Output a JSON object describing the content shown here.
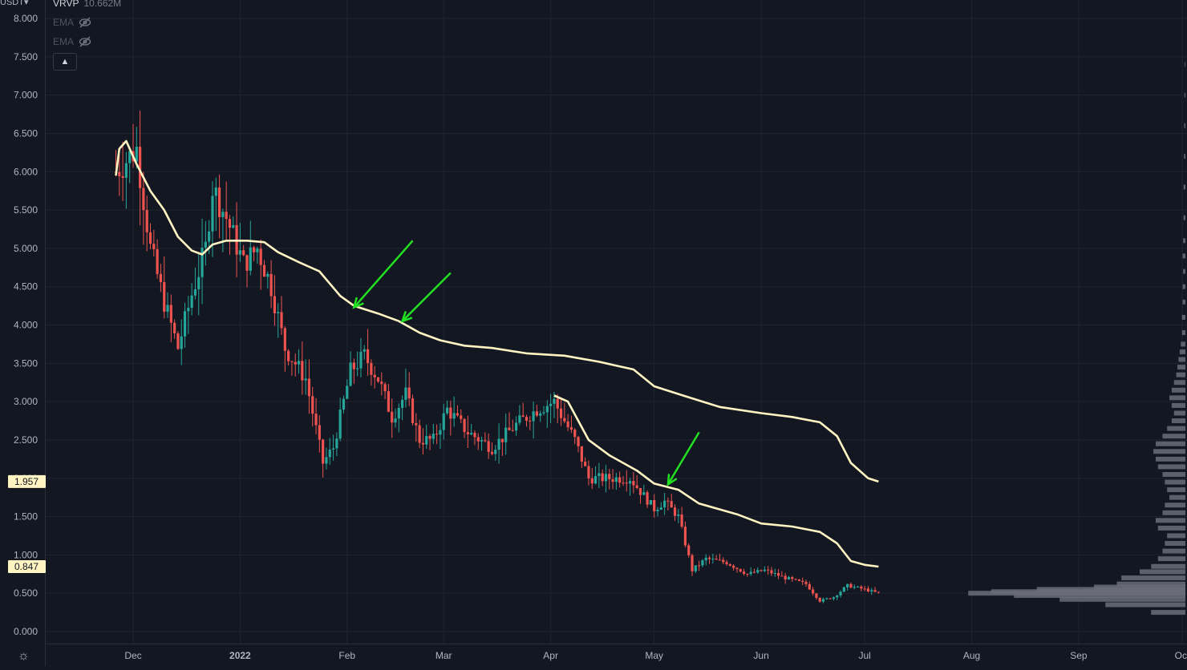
{
  "currency_label": "USDT",
  "legend": {
    "vrvp_label": "VRVP",
    "vrvp_value": "10.662M",
    "ema_1": "EMA",
    "ema_2": "EMA",
    "ema_hidden_icon": "eye-slash-icon"
  },
  "collapse_icon": "chevron-up-icon",
  "settings_icon": "gear-icon",
  "colors": {
    "background": "#131722",
    "grid": "#1f2430",
    "up": "#26a69a",
    "down": "#ef5350",
    "ema": "#fff4c2",
    "arrow": "#22e022",
    "axis_text": "#b2b5be",
    "profile": "#6a6d78"
  },
  "chart_data": {
    "type": "candlestick",
    "ylim": [
      0,
      8
    ],
    "y_ticks": [
      "0.000",
      "0.500",
      "1.000",
      "1.500",
      "2.000",
      "2.500",
      "3.000",
      "3.500",
      "4.000",
      "4.500",
      "5.000",
      "5.500",
      "6.000",
      "6.500",
      "7.000",
      "7.500",
      "8.000"
    ],
    "x_ticks": [
      {
        "label": "Dec",
        "date": "2021-12-01"
      },
      {
        "label": "2022",
        "date": "2022-01-01"
      },
      {
        "label": "Feb",
        "date": "2022-02-01"
      },
      {
        "label": "Mar",
        "date": "2022-03-01"
      },
      {
        "label": "Apr",
        "date": "2022-04-01"
      },
      {
        "label": "May",
        "date": "2022-05-01"
      },
      {
        "label": "Jun",
        "date": "2022-06-01"
      },
      {
        "label": "Jul",
        "date": "2022-07-01"
      },
      {
        "label": "Aug",
        "date": "2022-08-01"
      },
      {
        "label": "Sep",
        "date": "2022-09-01"
      },
      {
        "label": "Oct",
        "date": "2022-10-01"
      }
    ],
    "price_labels": [
      {
        "text": "1.957",
        "value": 1.957
      },
      {
        "text": "0.847",
        "value": 0.847
      }
    ],
    "ema_long": [
      [
        "2021-11-26",
        5.95
      ],
      [
        "2021-11-27",
        6.3
      ],
      [
        "2021-11-29",
        6.4
      ],
      [
        "2021-12-02",
        6.1
      ],
      [
        "2021-12-06",
        5.75
      ],
      [
        "2021-12-10",
        5.5
      ],
      [
        "2021-12-14",
        5.15
      ],
      [
        "2021-12-18",
        4.97
      ],
      [
        "2021-12-21",
        4.92
      ],
      [
        "2021-12-24",
        5.05
      ],
      [
        "2021-12-28",
        5.1
      ],
      [
        "2022-01-03",
        5.1
      ],
      [
        "2022-01-08",
        5.08
      ],
      [
        "2022-01-12",
        4.95
      ],
      [
        "2022-01-18",
        4.82
      ],
      [
        "2022-01-24",
        4.7
      ],
      [
        "2022-01-30",
        4.38
      ],
      [
        "2022-02-03",
        4.25
      ],
      [
        "2022-02-10",
        4.15
      ],
      [
        "2022-02-16",
        4.05
      ],
      [
        "2022-02-22",
        3.9
      ],
      [
        "2022-02-28",
        3.8
      ],
      [
        "2022-03-07",
        3.73
      ],
      [
        "2022-03-15",
        3.7
      ],
      [
        "2022-03-25",
        3.63
      ],
      [
        "2022-04-05",
        3.6
      ],
      [
        "2022-04-15",
        3.52
      ],
      [
        "2022-04-25",
        3.42
      ],
      [
        "2022-05-01",
        3.2
      ],
      [
        "2022-05-10",
        3.07
      ],
      [
        "2022-05-20",
        2.93
      ],
      [
        "2022-06-01",
        2.85
      ],
      [
        "2022-06-10",
        2.8
      ],
      [
        "2022-06-18",
        2.73
      ],
      [
        "2022-06-23",
        2.55
      ],
      [
        "2022-06-27",
        2.2
      ],
      [
        "2022-07-02",
        2.0
      ],
      [
        "2022-07-05",
        1.957
      ]
    ],
    "ema_short": [
      [
        "2022-04-02",
        3.08
      ],
      [
        "2022-04-06",
        3.0
      ],
      [
        "2022-04-12",
        2.5
      ],
      [
        "2022-04-18",
        2.3
      ],
      [
        "2022-04-26",
        2.1
      ],
      [
        "2022-05-01",
        1.93
      ],
      [
        "2022-05-08",
        1.85
      ],
      [
        "2022-05-14",
        1.67
      ],
      [
        "2022-05-25",
        1.53
      ],
      [
        "2022-06-01",
        1.41
      ],
      [
        "2022-06-10",
        1.37
      ],
      [
        "2022-06-18",
        1.3
      ],
      [
        "2022-06-23",
        1.15
      ],
      [
        "2022-06-27",
        0.92
      ],
      [
        "2022-07-01",
        0.87
      ],
      [
        "2022-07-05",
        0.847
      ]
    ],
    "arrows": [
      {
        "from": [
          "2022-02-20",
          5.1
        ],
        "to": [
          "2022-02-03",
          4.23
        ]
      },
      {
        "from": [
          "2022-03-03",
          4.68
        ],
        "to": [
          "2022-02-17",
          4.05
        ]
      },
      {
        "from": [
          "2022-05-14",
          2.6
        ],
        "to": [
          "2022-05-05",
          1.92
        ]
      }
    ],
    "volume_profile": [
      [
        0.25,
        0.15
      ],
      [
        0.35,
        0.35
      ],
      [
        0.42,
        0.55
      ],
      [
        0.47,
        0.75
      ],
      [
        0.5,
        0.95
      ],
      [
        0.52,
        0.85
      ],
      [
        0.55,
        0.65
      ],
      [
        0.58,
        0.4
      ],
      [
        0.62,
        0.3
      ],
      [
        0.7,
        0.28
      ],
      [
        0.78,
        0.2
      ],
      [
        0.85,
        0.15
      ],
      [
        0.95,
        0.12
      ],
      [
        1.05,
        0.1
      ],
      [
        1.15,
        0.09
      ],
      [
        1.25,
        0.08
      ],
      [
        1.35,
        0.12
      ],
      [
        1.45,
        0.13
      ],
      [
        1.55,
        0.1
      ],
      [
        1.65,
        0.09
      ],
      [
        1.75,
        0.07
      ],
      [
        1.85,
        0.08
      ],
      [
        1.95,
        0.09
      ],
      [
        2.05,
        0.1
      ],
      [
        2.15,
        0.12
      ],
      [
        2.25,
        0.13
      ],
      [
        2.35,
        0.14
      ],
      [
        2.45,
        0.13
      ],
      [
        2.55,
        0.1
      ],
      [
        2.65,
        0.08
      ],
      [
        2.75,
        0.06
      ],
      [
        2.85,
        0.05
      ],
      [
        2.95,
        0.06
      ],
      [
        3.05,
        0.07
      ],
      [
        3.15,
        0.06
      ],
      [
        3.25,
        0.05
      ],
      [
        3.35,
        0.04
      ],
      [
        3.45,
        0.035
      ],
      [
        3.55,
        0.03
      ],
      [
        3.65,
        0.025
      ],
      [
        3.75,
        0.02
      ],
      [
        3.9,
        0.015
      ],
      [
        4.1,
        0.015
      ],
      [
        4.3,
        0.012
      ],
      [
        4.5,
        0.012
      ],
      [
        4.7,
        0.01
      ],
      [
        4.9,
        0.012
      ],
      [
        5.1,
        0.01
      ],
      [
        5.4,
        0.008
      ],
      [
        5.8,
        0.008
      ],
      [
        6.2,
        0.006
      ],
      [
        6.6,
        0.005
      ],
      [
        7.0,
        0.004
      ],
      [
        7.4,
        0.003
      ]
    ]
  }
}
